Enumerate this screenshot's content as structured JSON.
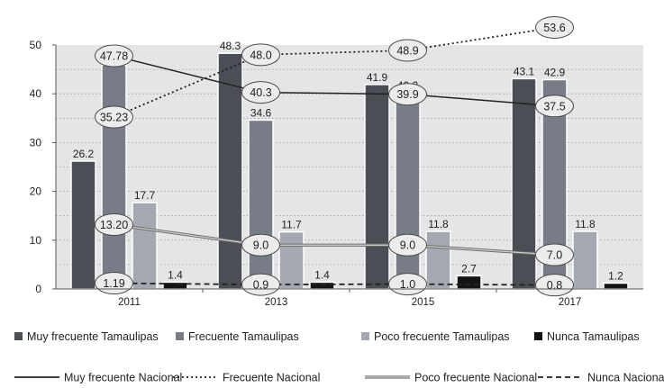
{
  "chart_data": {
    "type": "bar",
    "categories": [
      "2011",
      "2013",
      "2015",
      "2017"
    ],
    "ylim": [
      0,
      50
    ],
    "yticks": [
      0,
      10,
      20,
      30,
      40,
      50
    ],
    "grid": true,
    "legend_placement": "bottom",
    "series": [
      {
        "name": "Muy frecuente Tamaulipas",
        "kind": "bar",
        "color": "#4b4e55",
        "values": [
          26.2,
          48.3,
          41.9,
          43.1
        ],
        "labels": [
          "26.2",
          "48.3",
          "41.9",
          "43.1"
        ]
      },
      {
        "name": "Frecuente Tamaulipas",
        "kind": "bar",
        "color": "#787c86",
        "values": [
          45.9,
          34.6,
          40.2,
          42.9
        ],
        "labels": [
          "45.9",
          "34.6",
          "40.2",
          "42.9"
        ]
      },
      {
        "name": "Poco frecuente Tamaulipas",
        "kind": "bar",
        "color": "#a3a8b1",
        "values": [
          17.7,
          11.7,
          11.8,
          11.8
        ],
        "labels": [
          "17.7",
          "11.7",
          "11.8",
          "11.8"
        ]
      },
      {
        "name": "Nunca Tamaulipas",
        "kind": "bar",
        "color": "#141414",
        "values": [
          1.4,
          1.4,
          2.7,
          1.2
        ],
        "labels": [
          "1.4",
          "1.4",
          "2.7",
          "1.2"
        ]
      },
      {
        "name": "Muy frecuente Nacional",
        "kind": "line",
        "style": "solid",
        "color": "#222222",
        "values": [
          47.78,
          40.3,
          39.9,
          37.5
        ],
        "labels": [
          "47.78",
          "40.3",
          "39.9",
          "37.5"
        ]
      },
      {
        "name": "Frecuente Nacional",
        "kind": "line",
        "style": "dotted",
        "color": "#222222",
        "values": [
          35.23,
          48.0,
          48.9,
          53.6
        ],
        "labels": [
          "35.23",
          "48.0",
          "48.9",
          "53.6"
        ]
      },
      {
        "name": "Poco frecuente Nacional",
        "kind": "line",
        "style": "double",
        "color": "#777777",
        "values": [
          13.2,
          9.0,
          9.0,
          7.0
        ],
        "labels": [
          "13.20",
          "9.0",
          "9.0",
          "7.0"
        ]
      },
      {
        "name": "Nunca Nacional",
        "kind": "line",
        "style": "dashed",
        "color": "#222222",
        "values": [
          1.19,
          0.9,
          1.0,
          0.8
        ],
        "labels": [
          "1.19",
          "0.9",
          "1.0",
          "0.8"
        ]
      }
    ]
  }
}
